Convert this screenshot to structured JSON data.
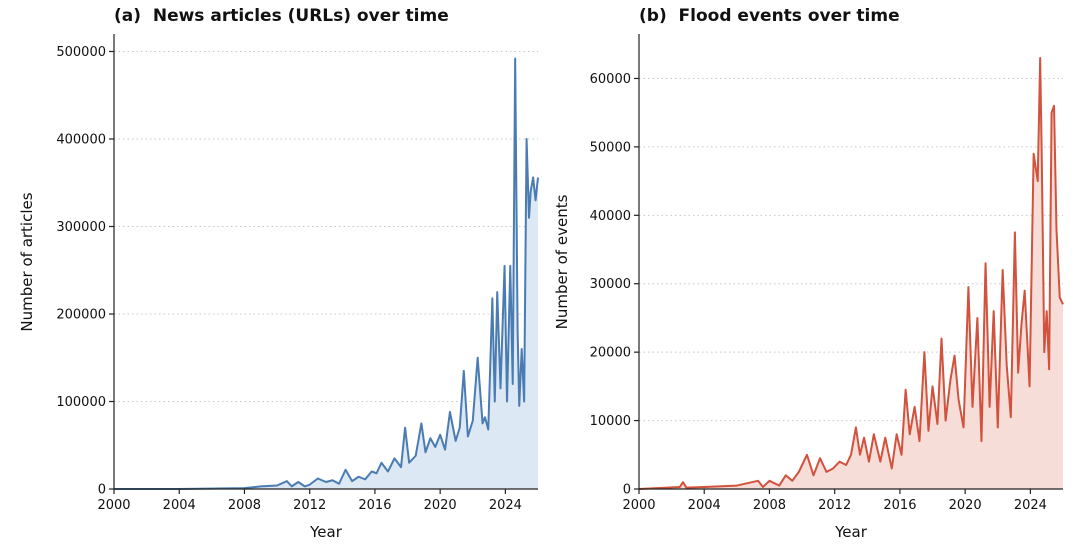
{
  "colors": {
    "panel_a_line": "#4a7cb3",
    "panel_a_fill": "#dce8f3",
    "panel_b_line": "#d1523d",
    "panel_b_fill": "#f6ddd8",
    "grid": "#c8c8c8",
    "axis": "#222222"
  },
  "chart_data": [
    {
      "type": "area",
      "title": "(a)  News articles (URLs) over time",
      "xlabel": "Year",
      "ylabel": "Number of articles",
      "xlim": [
        2000,
        2026
      ],
      "ylim": [
        0,
        520000
      ],
      "xticks": [
        2000,
        2004,
        2008,
        2012,
        2016,
        2020,
        2024
      ],
      "xtick_labels": [
        "2000",
        "2004",
        "2008",
        "2012",
        "2016",
        "2020",
        "2024"
      ],
      "yticks": [
        0,
        100000,
        200000,
        300000,
        400000,
        500000
      ],
      "ytick_labels": [
        "0",
        "100000",
        "200000",
        "300000",
        "400000",
        "500000"
      ],
      "grid": "horizontal-dotted",
      "series": [
        {
          "name": "News articles",
          "x": [
            2000,
            2004,
            2008,
            2009,
            2010,
            2010.6,
            2010.9,
            2011.3,
            2011.7,
            2012,
            2012.5,
            2013,
            2013.4,
            2013.8,
            2014.2,
            2014.6,
            2015,
            2015.4,
            2015.8,
            2016.1,
            2016.4,
            2016.8,
            2017.2,
            2017.6,
            2017.85,
            2018.1,
            2018.5,
            2018.85,
            2019.1,
            2019.4,
            2019.7,
            2020,
            2020.3,
            2020.6,
            2020.95,
            2021.2,
            2021.45,
            2021.7,
            2022,
            2022.3,
            2022.6,
            2022.75,
            2022.95,
            2023.2,
            2023.35,
            2023.5,
            2023.7,
            2023.95,
            2024.1,
            2024.3,
            2024.45,
            2024.6,
            2024.75,
            2024.85,
            2025.0,
            2025.15,
            2025.3,
            2025.45,
            2025.55,
            2025.7,
            2025.85,
            2026
          ],
          "values": [
            0,
            0,
            1000,
            3000,
            4000,
            9000,
            3000,
            8000,
            3000,
            5000,
            12000,
            8000,
            10000,
            6000,
            22000,
            9000,
            14000,
            11000,
            20000,
            18000,
            30000,
            20000,
            35000,
            25000,
            70000,
            30000,
            38000,
            75000,
            42000,
            58000,
            48000,
            62000,
            45000,
            88000,
            55000,
            70000,
            135000,
            60000,
            78000,
            150000,
            75000,
            82000,
            68000,
            218000,
            100000,
            225000,
            115000,
            255000,
            100000,
            255000,
            120000,
            492000,
            180000,
            95000,
            160000,
            100000,
            400000,
            310000,
            340000,
            356000,
            330000,
            356000
          ]
        }
      ]
    },
    {
      "type": "area",
      "title": "(b)  Flood events over time",
      "xlabel": "Year",
      "ylabel": "Number of events",
      "xlim": [
        2000,
        2026
      ],
      "ylim": [
        0,
        66500
      ],
      "xticks": [
        2000,
        2004,
        2008,
        2012,
        2016,
        2020,
        2024
      ],
      "xtick_labels": [
        "2000",
        "2004",
        "2008",
        "2012",
        "2016",
        "2020",
        "2024"
      ],
      "yticks": [
        0,
        10000,
        20000,
        30000,
        40000,
        50000,
        60000
      ],
      "ytick_labels": [
        "0",
        "10000",
        "20000",
        "30000",
        "40000",
        "50000",
        "60000"
      ],
      "grid": "horizontal-dotted",
      "series": [
        {
          "name": "Flood events",
          "x": [
            2000,
            2002.5,
            2002.7,
            2002.9,
            2004,
            2006,
            2007.3,
            2007.6,
            2008,
            2008.6,
            2009,
            2009.4,
            2009.8,
            2010.3,
            2010.7,
            2011.1,
            2011.5,
            2011.9,
            2012.3,
            2012.7,
            2013.0,
            2013.3,
            2013.55,
            2013.8,
            2014.1,
            2014.4,
            2014.8,
            2015.1,
            2015.5,
            2015.8,
            2016.1,
            2016.35,
            2016.6,
            2016.9,
            2017.2,
            2017.5,
            2017.75,
            2018.0,
            2018.3,
            2018.55,
            2018.8,
            2019.1,
            2019.35,
            2019.6,
            2019.9,
            2020.2,
            2020.45,
            2020.75,
            2021.0,
            2021.25,
            2021.5,
            2021.75,
            2022.0,
            2022.3,
            2022.55,
            2022.8,
            2023.05,
            2023.25,
            2023.45,
            2023.65,
            2023.95,
            2024.2,
            2024.45,
            2024.6,
            2024.7,
            2024.85,
            2025.0,
            2025.15,
            2025.3,
            2025.45,
            2025.6,
            2025.8,
            2026
          ],
          "values": [
            0,
            300,
            1000,
            200,
            300,
            500,
            1200,
            300,
            1200,
            500,
            2000,
            1200,
            2500,
            5000,
            2000,
            4500,
            2500,
            3000,
            4000,
            3500,
            5000,
            9000,
            5000,
            7500,
            4000,
            8000,
            4000,
            7500,
            3000,
            8000,
            5000,
            14500,
            8000,
            12000,
            7000,
            20000,
            8500,
            15000,
            9500,
            22000,
            10000,
            16000,
            19500,
            13000,
            9000,
            29500,
            12000,
            25000,
            7000,
            33000,
            12000,
            26000,
            9000,
            32000,
            18000,
            10500,
            37500,
            17000,
            24000,
            29000,
            15000,
            49000,
            45000,
            63000,
            48000,
            20000,
            26000,
            17500,
            55000,
            56000,
            38000,
            28000,
            27000
          ]
        }
      ]
    }
  ]
}
